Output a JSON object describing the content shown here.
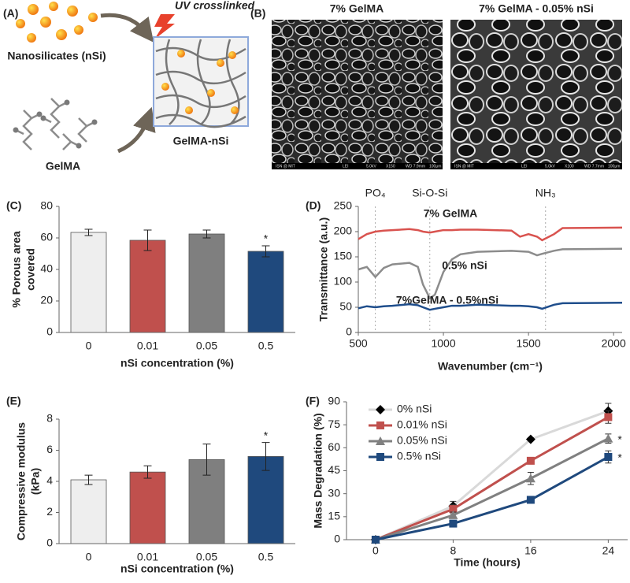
{
  "figure": {
    "panel_a": {
      "label": "(A)",
      "uv": "UV crosslinked",
      "nanosilicates": "Nanosilicates (nSi)",
      "gelma": "GelMA",
      "composite": "GelMA-nSi"
    },
    "panel_b": {
      "label": "(B)",
      "images": [
        {
          "title": "7% GelMA",
          "info": [
            "ISN @ MIT",
            "LEI",
            "5.0kV",
            "X150",
            "WD 7.9mm",
            "100μm"
          ]
        },
        {
          "title": "7% GelMA - 0.05% nSi",
          "info": [
            "ISN @ MIT",
            "LEI",
            "5.0kV",
            "X100",
            "WD 7.7mm",
            "100μm"
          ]
        }
      ]
    }
  },
  "chart_data": [
    {
      "panel_label": "(C)",
      "type": "bar",
      "categories": [
        "0",
        "0.01",
        "0.05",
        "0.5"
      ],
      "values": [
        63.5,
        58.5,
        62.5,
        51.5
      ],
      "errors": [
        2,
        6.5,
        2.5,
        3.5
      ],
      "colors": [
        "#eeeeee",
        "#c0504d",
        "#7f7f7f",
        "#1f497d"
      ],
      "ylim": [
        0,
        80
      ],
      "yticks": [
        0,
        20,
        40,
        60,
        80
      ],
      "ylabel": [
        "% Porous area",
        "covered"
      ],
      "xlabel": "nSi concentration (%)",
      "annotations": [
        {
          "text": "*",
          "category": "0.5"
        }
      ]
    },
    {
      "panel_label": "(D)",
      "type": "line",
      "x": [
        500,
        550,
        600,
        650,
        700,
        800,
        850,
        880,
        920,
        950,
        1000,
        1050,
        1100,
        1200,
        1400,
        1450,
        1500,
        1550,
        1580,
        1650,
        1700,
        2050
      ],
      "series": [
        {
          "name": "7% GelMA",
          "color": "#d9534f",
          "values": [
            185,
            195,
            200,
            202,
            203,
            205,
            203,
            200,
            198,
            200,
            203,
            203,
            204,
            204,
            202,
            190,
            195,
            190,
            183,
            195,
            207,
            208
          ]
        },
        {
          "name": "0.5% nSi",
          "color": "#8c8c8c",
          "values": [
            125,
            130,
            110,
            128,
            135,
            138,
            130,
            95,
            68,
            75,
            120,
            145,
            155,
            160,
            162,
            161,
            160,
            153,
            156,
            162,
            165,
            166
          ]
        },
        {
          "name": "7%GelMA - 0.5%nSi",
          "color": "#1f4e8c",
          "values": [
            48,
            52,
            50,
            52,
            53,
            56,
            54,
            50,
            45,
            47,
            50,
            53,
            53,
            55,
            53,
            53,
            52,
            50,
            47,
            55,
            58,
            59
          ]
        }
      ],
      "xlim": [
        500,
        2050
      ],
      "xticks": [
        500,
        1000,
        1500,
        2000
      ],
      "ylim": [
        0,
        250
      ],
      "yticks": [
        0,
        50,
        100,
        150,
        200,
        250
      ],
      "ylabel": "Transmittance (a.u.)",
      "xlabel": "Wavenumber (cm⁻¹)",
      "annotations": [
        {
          "text": "PO₄",
          "x": 600
        },
        {
          "text": "Si-O-Si",
          "x": 920
        },
        {
          "text": "NH₃",
          "x": 1600
        }
      ]
    },
    {
      "panel_label": "(E)",
      "type": "bar",
      "categories": [
        "0",
        "0.01",
        "0.05",
        "0.5"
      ],
      "values": [
        4.1,
        4.6,
        5.4,
        5.6
      ],
      "errors": [
        0.3,
        0.4,
        1.0,
        0.9
      ],
      "colors": [
        "#eeeeee",
        "#c0504d",
        "#7f7f7f",
        "#1f497d"
      ],
      "ylim": [
        0,
        8
      ],
      "yticks": [
        0,
        2,
        4,
        6,
        8
      ],
      "ylabel": [
        "Compressive modulus",
        "(kPa)"
      ],
      "xlabel": "nSi concentration (%)",
      "annotations": [
        {
          "text": "*",
          "category": "0.5"
        }
      ]
    },
    {
      "panel_label": "(F)",
      "type": "line",
      "x": [
        0,
        8,
        16,
        24
      ],
      "series": [
        {
          "name": "0% nSi",
          "color": "#d9d9d9",
          "marker": "diamond",
          "marker_color": "#000000",
          "values": [
            0,
            22,
            65.5,
            84
          ],
          "errors": [
            0,
            3,
            1,
            5
          ]
        },
        {
          "name": "0.01% nSi",
          "color": "#c0504d",
          "marker": "square",
          "marker_color": "#c0504d",
          "values": [
            0,
            20,
            51.5,
            80
          ],
          "errors": [
            0,
            3,
            2,
            4
          ]
        },
        {
          "name": "0.05% nSi",
          "color": "#808080",
          "marker": "triangle",
          "marker_color": "#808080",
          "values": [
            0,
            16,
            40,
            66
          ],
          "errors": [
            0,
            2,
            4,
            3
          ]
        },
        {
          "name": "0.5% nSi",
          "color": "#1f497d",
          "marker": "square",
          "marker_color": "#1f497d",
          "values": [
            0,
            10.5,
            26,
            54
          ],
          "errors": [
            0,
            1,
            1,
            4
          ]
        }
      ],
      "xlim": [
        -3,
        26
      ],
      "xticks": [
        0,
        8,
        16,
        24
      ],
      "ylim": [
        0,
        90
      ],
      "yticks": [
        0,
        15,
        30,
        45,
        60,
        75,
        90
      ],
      "ylabel": "Mass Degradation (%)",
      "xlabel": "Time (hours)",
      "legend": "upper left",
      "annotations": [
        {
          "text": "*",
          "series": "0.05% nSi"
        },
        {
          "text": "*",
          "series": "0.5% nSi"
        }
      ]
    }
  ]
}
